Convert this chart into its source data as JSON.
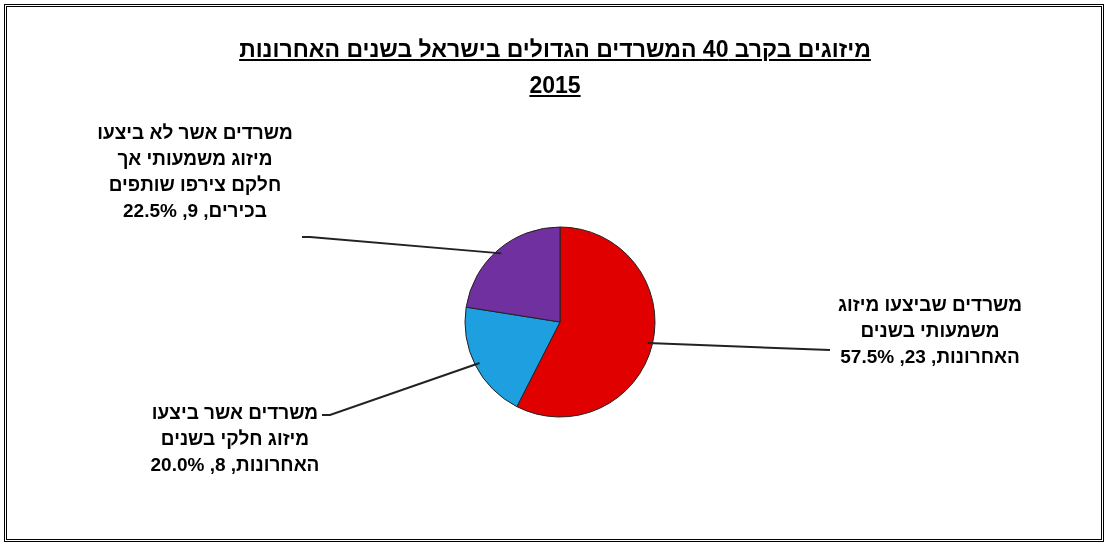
{
  "chart_data": {
    "type": "pie",
    "title": "מיזוגים בקרב 40 המשרדים הגדולים בישראל בשנים האחרונות",
    "subtitle": "2015",
    "categories": [
      "משרדים שביצעו מיזוג משמעותי בשנים האחרונות",
      "משרדים אשר ביצעו מיזוג חלקי בשנים האחרונות",
      "משרדים אשר לא ביצעו מיזוג משמעותי אך חלקם צירפו שותפים בכירים"
    ],
    "values": [
      23,
      8,
      9
    ],
    "value_labels": [
      ", 23, 57.5%",
      ", 8, 20.0%",
      ", 9, 22.5%"
    ],
    "colors": [
      "#e00000",
      "#1ea0e0",
      "#7030a0"
    ]
  }
}
